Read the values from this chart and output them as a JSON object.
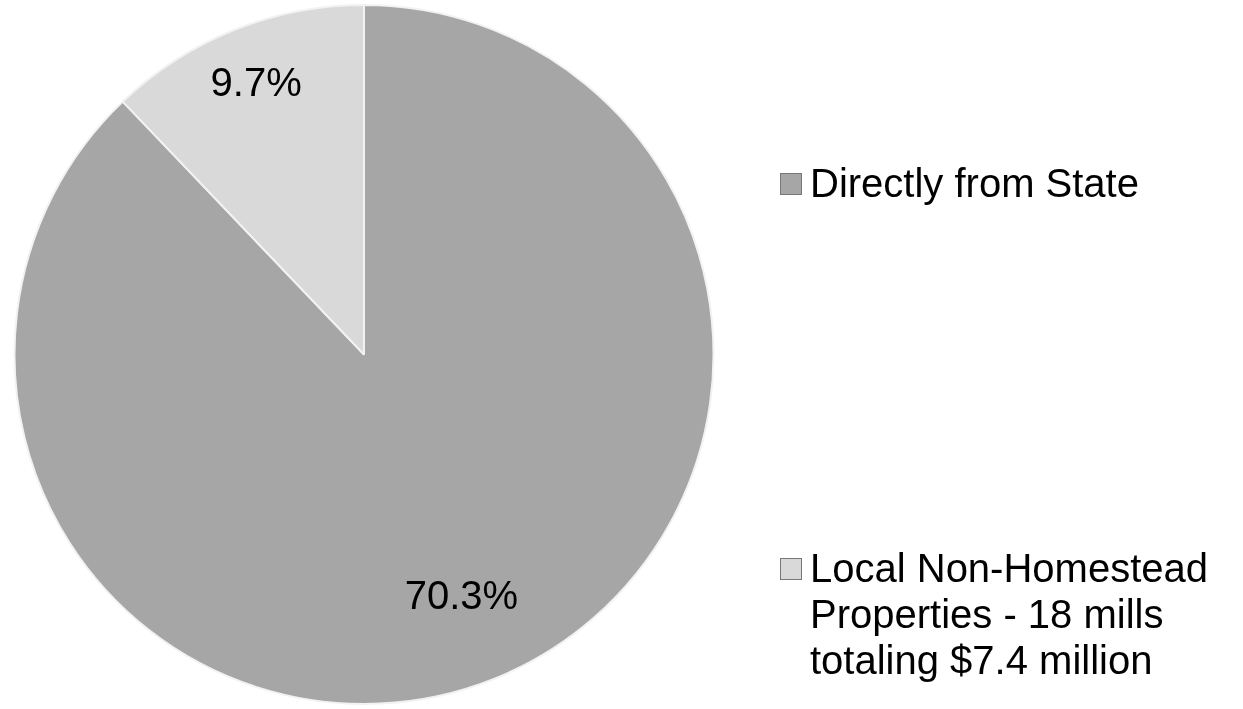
{
  "chart_data": {
    "type": "pie",
    "categories": [
      "Directly from State",
      "Local Non-Homestead Properties - 18 mills totaling $7.4 million"
    ],
    "values": [
      70.3,
      9.7
    ],
    "colors": [
      "#a6a6a6",
      "#d9d9d9"
    ],
    "value_labels": [
      "70.3%",
      "9.7%"
    ],
    "legend": "right"
  }
}
